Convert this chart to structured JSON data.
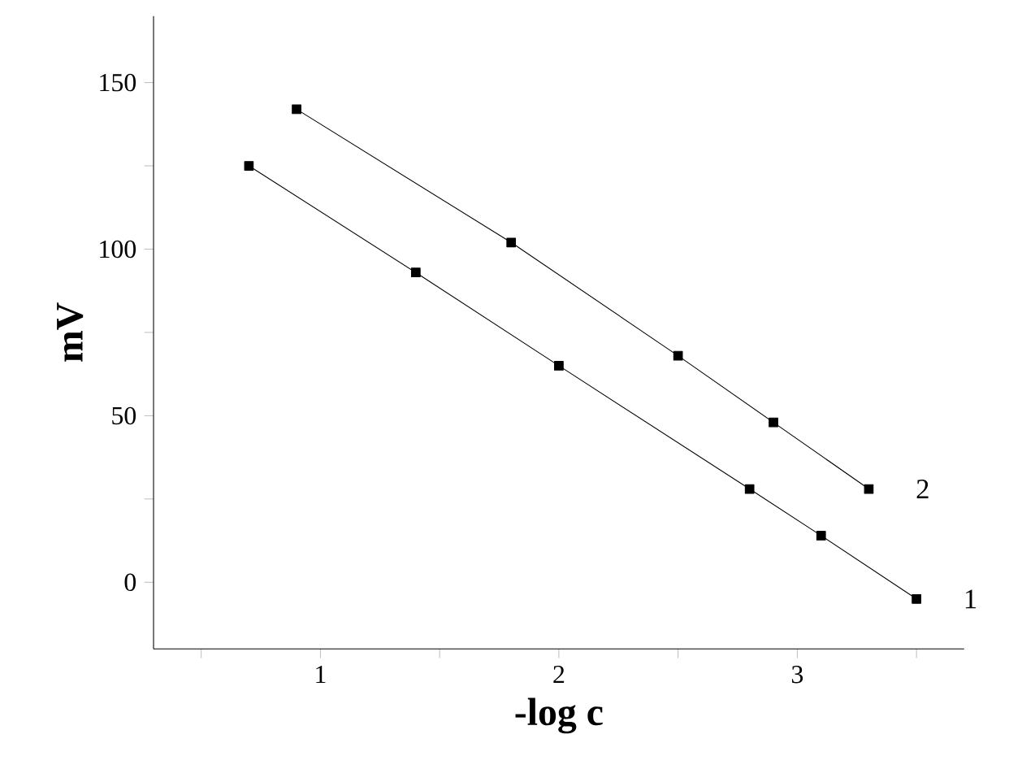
{
  "chart_data": {
    "type": "line",
    "xlabel": "-log c",
    "ylabel": "mV",
    "marker": "square",
    "line_style": "solid",
    "xlim": [
      0.3,
      3.7
    ],
    "ylim": [
      -20,
      170
    ],
    "xticks": [
      {
        "value": 0.5,
        "label": null
      },
      1,
      {
        "value": 1.5,
        "label": null
      },
      2,
      {
        "value": 2.5,
        "label": null
      },
      3,
      {
        "value": 3.5,
        "label": null
      }
    ],
    "yticks": [
      0,
      {
        "value": 25,
        "label": null
      },
      50,
      {
        "value": 75,
        "label": null
      },
      100,
      {
        "value": 125,
        "label": null
      },
      150
    ],
    "series": [
      {
        "name": "1",
        "color": "#000000",
        "x": [
          0.7,
          1.4,
          2.0,
          2.8,
          3.1,
          3.5
        ],
        "values": [
          125,
          93,
          65,
          28,
          14,
          -5
        ]
      },
      {
        "name": "2",
        "color": "#000000",
        "x": [
          0.9,
          1.8,
          2.5,
          2.9,
          3.3
        ],
        "values": [
          142,
          102,
          68,
          48,
          28
        ]
      }
    ]
  }
}
